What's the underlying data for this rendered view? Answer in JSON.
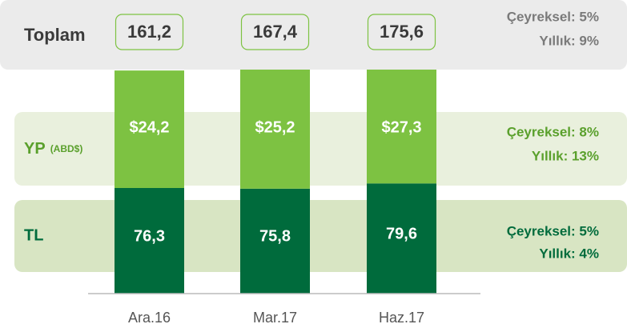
{
  "chart_data": {
    "type": "stacked-bar",
    "categories": [
      "Ara.16",
      "Mar.17",
      "Haz.17"
    ],
    "total_label": "Toplam",
    "totals": [
      161.2,
      167.4,
      175.6
    ],
    "total_labels": [
      "161,2",
      "167,4",
      "175,6"
    ],
    "total_change": [
      "Çeyreksel: 5%",
      "Yıllık: 9%"
    ],
    "fx_label": "YP",
    "fx_unit": "(ABD$)",
    "fx_usd_values": [
      24.2,
      25.2,
      27.3
    ],
    "fx_usd_labels": [
      "$24,2",
      "$25,2",
      "$27,3"
    ],
    "fx_color": "#7dc242",
    "fx_change": [
      "Çeyreksel: 8%",
      "Yıllık: 13%"
    ],
    "tl_label": "TL",
    "tl_values": [
      76.3,
      75.8,
      79.6
    ],
    "tl_value_labels": [
      "76,3",
      "75,8",
      "79,6"
    ],
    "tl_color": "#006b3c",
    "tl_change": [
      "Çeyreksel: 5%",
      "Yıllık: 4%"
    ]
  }
}
